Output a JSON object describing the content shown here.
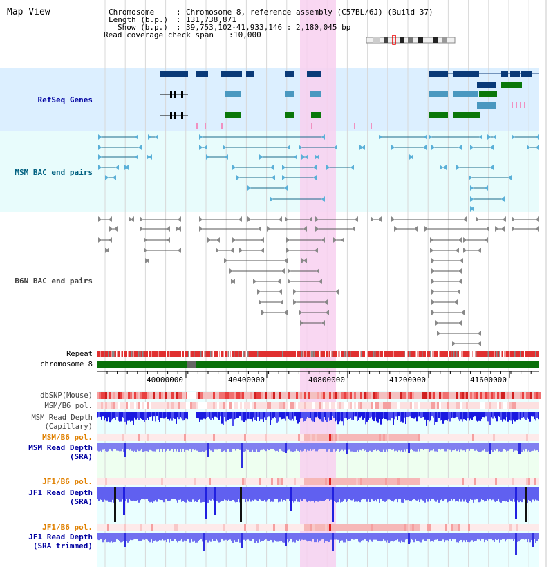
{
  "app": {
    "title": "Map View"
  },
  "header": {
    "chromosome_label": "Chromosome",
    "chromosome_value": "Chromosome 8, reference assembly (C57BL/6J) (Build 37)",
    "length_label": "Length (b.p.)",
    "length_value": "131,738,871",
    "show_label": "Show (b.p.)",
    "show_value": "39,753,102-41,933,146 : 2,180,045 bp",
    "coverage_label": "Read coverage check span",
    "coverage_value": "10,000"
  },
  "tracks": {
    "refseq": "RefSeq Genes",
    "msm_bac": "MSM BAC end pairs",
    "b6n_bac": "B6N BAC end pairs",
    "repeat": "Repeat",
    "chromosome": "chromosome 8",
    "dbsnp": "dbSNP(Mouse)",
    "msm_b6_pol_1": "MSM/B6 pol.",
    "msm_read_depth_cap_1": "MSM Read Depth",
    "msm_read_depth_cap_2": "(Capillary)",
    "msm_b6_pol_2": "MSM/B6 pol.",
    "msm_read_depth_sra_1": "MSM Read Depth",
    "msm_read_depth_sra_2": "(SRA)",
    "jf1_b6_pol_1": "JF1/B6 pol.",
    "jf1_read_depth_sra_1": "JF1 Read Depth",
    "jf1_read_depth_sra_2": "(SRA)",
    "jf1_b6_pol_2": "JF1/B6 pol.",
    "jf1_read_depth_trim_1": "JF1 Read Depth",
    "jf1_read_depth_trim_2": "(SRA trimmed)"
  },
  "axis": {
    "ticks": [
      "40000000",
      "40400000",
      "40800000",
      "41200000",
      "41600000"
    ]
  },
  "colors": {
    "refseq_label": "#0000a0",
    "msm_label": "#006080",
    "b6n_label": "#404040",
    "orange_label": "#e08000",
    "blue_label": "#0000a0",
    "highlight": "#f8d0f0"
  }
}
